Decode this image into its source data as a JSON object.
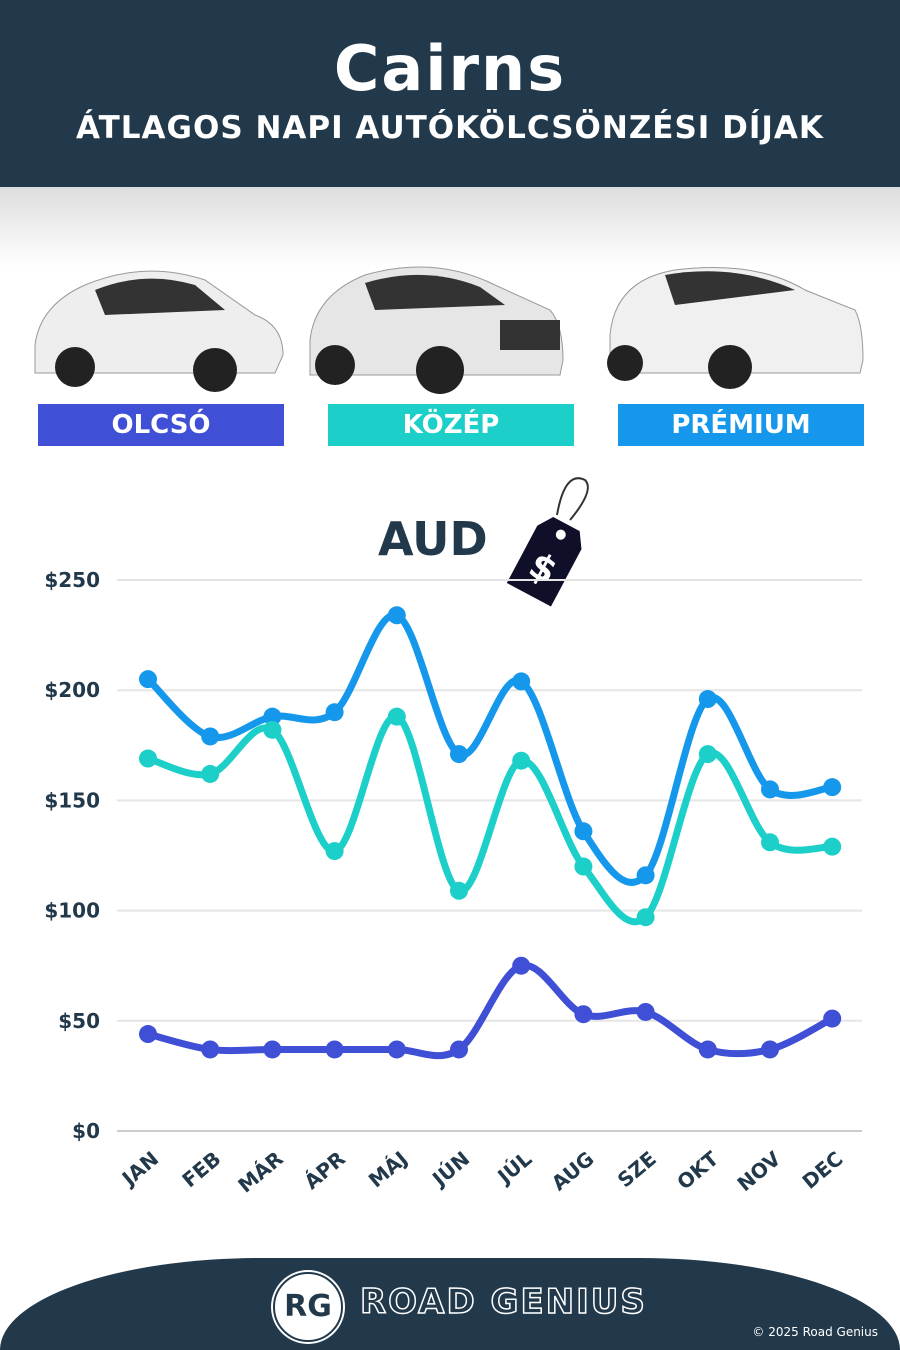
{
  "header": {
    "title": "Cairns",
    "subtitle": "ÁTLAGOS NAPI AUTÓKÖLCSÖNZÉSI DÍJAK"
  },
  "categories": [
    {
      "label": "OLCSÓ",
      "color": "#3f4fd6"
    },
    {
      "label": "KÖZÉP",
      "color": "#1ccfc9"
    },
    {
      "label": "PRÉMIUM",
      "color": "#1598ec"
    }
  ],
  "currency": {
    "label": "AUD",
    "tag_symbol": "$",
    "icon": "price-tag-icon"
  },
  "chart_data": {
    "type": "line",
    "categories": [
      "JAN",
      "FEB",
      "MÁR",
      "ÁPR",
      "MÁJ",
      "JÚN",
      "JÚL",
      "AUG",
      "SZE",
      "OKT",
      "NOV",
      "DEC"
    ],
    "series": [
      {
        "name": "PRÉMIUM",
        "color": "#1598ec",
        "values": [
          205,
          179,
          188,
          190,
          234,
          171,
          204,
          136,
          116,
          196,
          155,
          156
        ]
      },
      {
        "name": "KÖZÉP",
        "color": "#1ccfc9",
        "values": [
          169,
          162,
          182,
          127,
          188,
          109,
          168,
          120,
          97,
          171,
          131,
          129
        ]
      },
      {
        "name": "OLCSÓ",
        "color": "#3f4fd6",
        "values": [
          44,
          37,
          37,
          37,
          37,
          37,
          75,
          53,
          54,
          37,
          37,
          51
        ]
      }
    ],
    "yticks": [
      "$0",
      "$50",
      "$100",
      "$150",
      "$200",
      "$250"
    ],
    "ytick_values": [
      0,
      50,
      100,
      150,
      200,
      250
    ],
    "ylim": [
      0,
      250
    ],
    "grid": true,
    "xlabel": "",
    "ylabel": ""
  },
  "footer": {
    "logo": "RG",
    "brand": "ROAD GENIUS",
    "copyright": "© 2025 Road Genius"
  }
}
